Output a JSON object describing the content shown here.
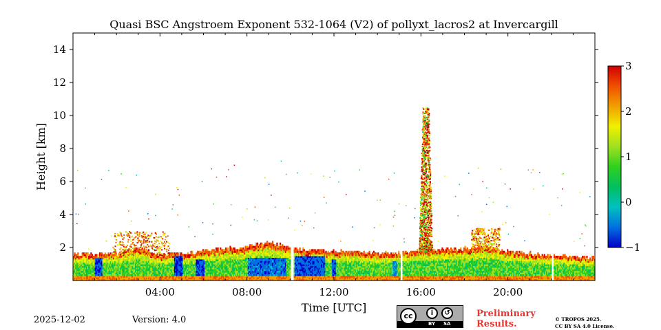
{
  "chart_data": {
    "type": "heatmap",
    "title": "Quasi BSC Angstroem Exponent 532-1064 (V2) of pollyxt_lacros2 at Invercargill",
    "xlabel": "Time [UTC]",
    "ylabel": "Height [km]",
    "x_range_hours": [
      0,
      24
    ],
    "x_ticks": [
      {
        "hour": 4,
        "label": "04:00"
      },
      {
        "hour": 8,
        "label": "08:00"
      },
      {
        "hour": 12,
        "label": "12:00"
      },
      {
        "hour": 16,
        "label": "16:00"
      },
      {
        "hour": 20,
        "label": "20:00"
      }
    ],
    "y_range_km": [
      0,
      15
    ],
    "y_ticks": [
      {
        "value": 2,
        "label": "2"
      },
      {
        "value": 4,
        "label": "4"
      },
      {
        "value": 6,
        "label": "6"
      },
      {
        "value": 8,
        "label": "8"
      },
      {
        "value": 10,
        "label": "10"
      },
      {
        "value": 12,
        "label": "12"
      },
      {
        "value": 14,
        "label": "14"
      }
    ],
    "colorbar": {
      "min": -1,
      "max": 3,
      "ticks": [
        {
          "value": 3,
          "label": "3"
        },
        {
          "value": 2,
          "label": "2"
        },
        {
          "value": 1,
          "label": "1"
        },
        {
          "value": 0,
          "label": "0"
        },
        {
          "value": -1,
          "label": "−1"
        }
      ]
    },
    "colormap": [
      "#0000c8",
      "#0070e0",
      "#00c0c0",
      "#00c060",
      "#30d020",
      "#a0e020",
      "#f0f000",
      "#f0a000",
      "#f05000",
      "#d00000"
    ],
    "boundary_layer_top_km": [
      [
        0.0,
        1.6
      ],
      [
        1.0,
        1.5
      ],
      [
        2.0,
        1.6
      ],
      [
        3.0,
        1.9
      ],
      [
        4.0,
        1.5
      ],
      [
        5.0,
        1.6
      ],
      [
        6.0,
        1.7
      ],
      [
        7.0,
        1.9
      ],
      [
        8.0,
        2.0
      ],
      [
        9.0,
        2.3
      ],
      [
        10.0,
        1.9
      ],
      [
        11.0,
        1.8
      ],
      [
        12.0,
        1.7
      ],
      [
        13.0,
        1.7
      ],
      [
        14.0,
        1.6
      ],
      [
        15.0,
        1.6
      ],
      [
        16.0,
        1.8
      ],
      [
        17.0,
        1.8
      ],
      [
        18.0,
        1.9
      ],
      [
        19.0,
        2.0
      ],
      [
        20.0,
        1.7
      ],
      [
        21.0,
        1.6
      ],
      [
        22.0,
        1.5
      ],
      [
        23.0,
        1.4
      ],
      [
        24.0,
        1.3
      ]
    ],
    "data_gaps_hours": [
      [
        10.0,
        10.15
      ],
      [
        15.05,
        15.15
      ],
      [
        22.0,
        22.1
      ]
    ],
    "low_value_regions": [
      {
        "from_hour": 1.0,
        "to_hour": 1.35,
        "top_km": 1.4,
        "value": -0.8
      },
      {
        "from_hour": 4.6,
        "to_hour": 5.0,
        "top_km": 1.5,
        "value": -0.9
      },
      {
        "from_hour": 5.6,
        "to_hour": 6.0,
        "top_km": 1.3,
        "value": -0.9
      },
      {
        "from_hour": 8.0,
        "to_hour": 9.8,
        "top_km": 1.4,
        "value": -0.7
      },
      {
        "from_hour": 10.2,
        "to_hour": 11.6,
        "top_km": 1.5,
        "value": -0.8
      },
      {
        "from_hour": 11.9,
        "to_hour": 12.1,
        "top_km": 1.3,
        "value": -0.8
      },
      {
        "from_hour": 14.7,
        "to_hour": 14.9,
        "top_km": 1.2,
        "value": -0.6
      }
    ],
    "plume": {
      "from_hour": 15.9,
      "to_hour": 16.5,
      "base_km": 1.8,
      "top_km": 10.5,
      "value": 2.0
    },
    "orange_patch_regions": [
      {
        "from_hour": 1.8,
        "to_hour": 4.4,
        "top_km": 3.0,
        "value": 2.1
      },
      {
        "from_hour": 18.3,
        "to_hour": 19.6,
        "top_km": 3.2,
        "value": 2.0
      }
    ]
  },
  "footer": {
    "date": "2025-12-02",
    "version": "Version: 4.0",
    "cc_label": "cc",
    "cc_by": "BY",
    "cc_sa": "SA",
    "preliminary_line1": "Preliminary",
    "preliminary_line2": "Results.",
    "copyright_line1": "© TROPOS 2025.",
    "copyright_line2": "CC BY SA 4.0 License."
  }
}
